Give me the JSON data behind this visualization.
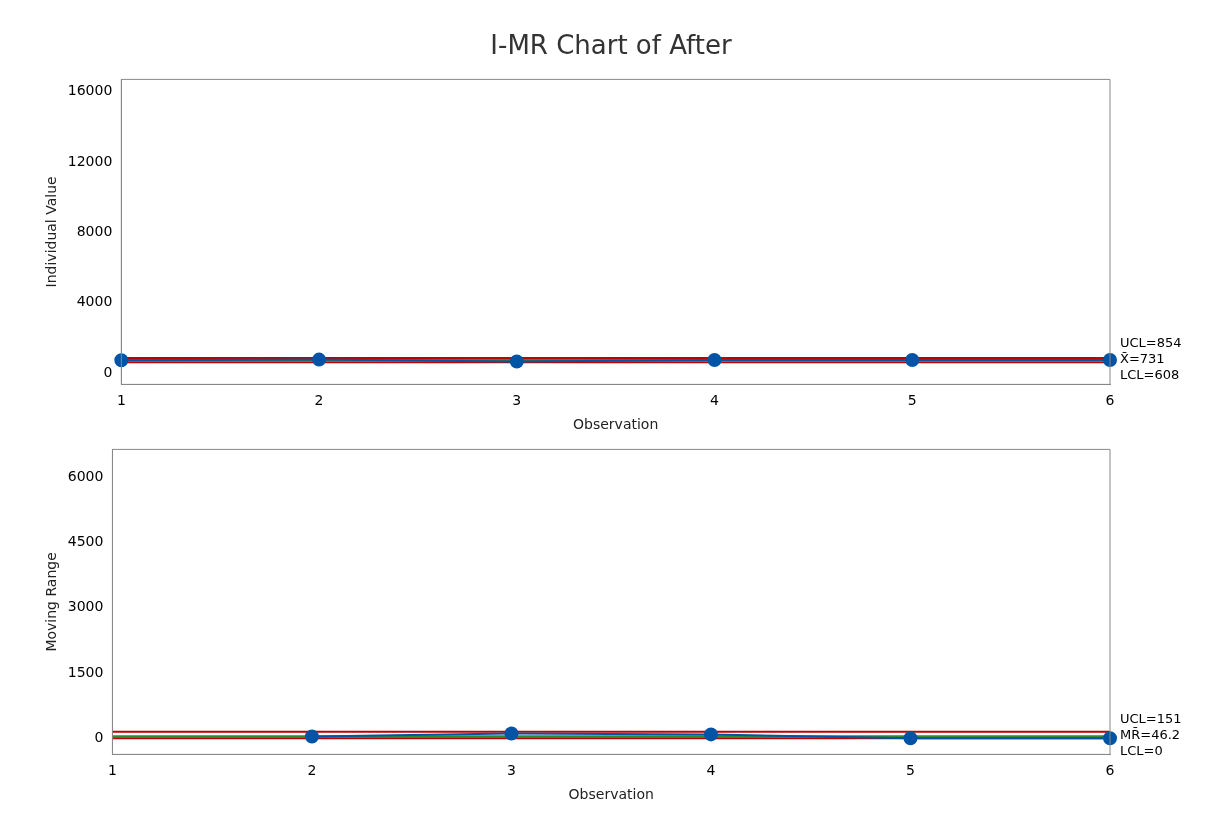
{
  "chart_data": [
    {
      "type": "line",
      "title": "I-MR Chart of After",
      "xlabel": "Observation",
      "ylabel": "Individual Value",
      "categories": [
        "1",
        "2",
        "3",
        "4",
        "5",
        "6"
      ],
      "series": [
        {
          "color": "#0054a6",
          "values": [
            720,
            760,
            650,
            740,
            740,
            740
          ]
        }
      ],
      "ylim": [
        -650,
        16700
      ],
      "yticks": [
        0,
        4000,
        8000,
        12000,
        16000
      ],
      "grid": false,
      "legend": false,
      "marker": "circle",
      "line_style": "solid",
      "ref_lines": [
        {
          "axis": "y",
          "value": 854,
          "label": "UCL=854",
          "color": "#c00000"
        },
        {
          "axis": "y",
          "value": 731,
          "label": "X̄=731",
          "color": "#2e8b2e"
        },
        {
          "axis": "y",
          "value": 608,
          "label": "LCL=608",
          "color": "#c00000"
        }
      ]
    },
    {
      "type": "line",
      "xlabel": "Observation",
      "ylabel": "Moving Range",
      "categories": [
        "1",
        "2",
        "3",
        "4",
        "5",
        "6"
      ],
      "series": [
        {
          "color": "#0054a6",
          "values": [
            null,
            40,
            110,
            90,
            0,
            0
          ]
        }
      ],
      "ylim": [
        -370,
        6640
      ],
      "yticks": [
        0,
        1500,
        3000,
        4500,
        6000
      ],
      "grid": false,
      "legend": false,
      "marker": "circle",
      "line_style": "solid",
      "ref_lines": [
        {
          "axis": "y",
          "value": 151,
          "label": "UCL=151",
          "color": "#c00000"
        },
        {
          "axis": "y",
          "value": 46.2,
          "label": "MR̄=46.2",
          "color": "#2e8b2e"
        },
        {
          "axis": "y",
          "value": 0,
          "label": "LCL=0",
          "color": "#c00000"
        }
      ]
    }
  ]
}
